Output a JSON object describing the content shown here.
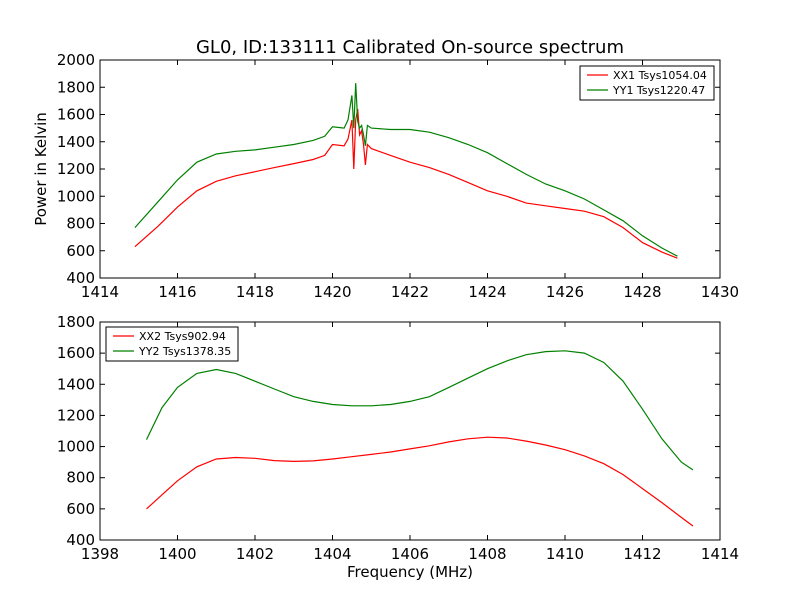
{
  "title": "GL0, ID:133111 Calibrated On-source spectrum",
  "xlabel": "Frequency (MHz)",
  "chart_data": [
    {
      "type": "line",
      "title": "GL0, ID:133111 Calibrated On-source spectrum",
      "xlabel": "",
      "ylabel": "Power in Kelvin",
      "xlim": [
        1414,
        1430
      ],
      "ylim": [
        400,
        2000
      ],
      "xticks": [
        1414,
        1416,
        1418,
        1420,
        1422,
        1424,
        1426,
        1428,
        1430
      ],
      "yticks": [
        400,
        600,
        800,
        1000,
        1200,
        1400,
        1600,
        1800,
        2000
      ],
      "grid": false,
      "legend_position": "upper right",
      "series": [
        {
          "name": "XX1 Tsys1054.04",
          "color": "#ff0000",
          "x": [
            1414.9,
            1415.5,
            1416.0,
            1416.5,
            1417.0,
            1417.5,
            1418.0,
            1418.5,
            1419.0,
            1419.5,
            1419.8,
            1420.0,
            1420.3,
            1420.4,
            1420.5,
            1420.55,
            1420.6,
            1420.65,
            1420.7,
            1420.75,
            1420.8,
            1420.85,
            1420.9,
            1421.0,
            1421.5,
            1422.0,
            1422.5,
            1423.0,
            1423.5,
            1424.0,
            1424.5,
            1425.0,
            1425.5,
            1426.0,
            1426.5,
            1427.0,
            1427.5,
            1428.0,
            1428.5,
            1428.9
          ],
          "y": [
            630,
            780,
            920,
            1040,
            1110,
            1150,
            1180,
            1210,
            1240,
            1270,
            1300,
            1380,
            1370,
            1420,
            1560,
            1200,
            1560,
            1640,
            1450,
            1480,
            1380,
            1230,
            1380,
            1350,
            1300,
            1250,
            1210,
            1160,
            1100,
            1040,
            1000,
            950,
            930,
            910,
            890,
            850,
            770,
            660,
            590,
            545
          ]
        },
        {
          "name": "YY1 Tsys1220.47",
          "color": "#008000",
          "x": [
            1414.9,
            1415.5,
            1416.0,
            1416.5,
            1417.0,
            1417.5,
            1418.0,
            1418.5,
            1419.0,
            1419.5,
            1419.8,
            1420.0,
            1420.3,
            1420.4,
            1420.5,
            1420.55,
            1420.6,
            1420.65,
            1420.7,
            1420.75,
            1420.8,
            1420.85,
            1420.9,
            1421.0,
            1421.5,
            1422.0,
            1422.5,
            1423.0,
            1423.5,
            1424.0,
            1424.5,
            1425.0,
            1425.5,
            1426.0,
            1426.5,
            1427.0,
            1427.5,
            1428.0,
            1428.5,
            1428.9
          ],
          "y": [
            770,
            960,
            1120,
            1250,
            1310,
            1330,
            1340,
            1360,
            1380,
            1410,
            1440,
            1510,
            1500,
            1560,
            1740,
            1500,
            1830,
            1550,
            1500,
            1520,
            1450,
            1370,
            1520,
            1500,
            1490,
            1490,
            1470,
            1430,
            1380,
            1320,
            1240,
            1160,
            1090,
            1040,
            980,
            900,
            820,
            710,
            620,
            560
          ]
        }
      ]
    },
    {
      "type": "line",
      "title": "",
      "xlabel": "Frequency (MHz)",
      "ylabel": "",
      "xlim": [
        1398,
        1414
      ],
      "ylim": [
        400,
        1800
      ],
      "xticks": [
        1398,
        1400,
        1402,
        1404,
        1406,
        1408,
        1410,
        1412,
        1414
      ],
      "yticks": [
        400,
        600,
        800,
        1000,
        1200,
        1400,
        1600,
        1800
      ],
      "grid": false,
      "legend_position": "upper left",
      "series": [
        {
          "name": "XX2 Tsys902.94",
          "color": "#ff0000",
          "x": [
            1399.2,
            1399.6,
            1400.0,
            1400.5,
            1401.0,
            1401.5,
            1402.0,
            1402.5,
            1403.0,
            1403.5,
            1404.0,
            1404.5,
            1405.0,
            1405.5,
            1406.0,
            1406.5,
            1407.0,
            1407.5,
            1408.0,
            1408.5,
            1409.0,
            1409.5,
            1410.0,
            1410.5,
            1411.0,
            1411.5,
            1412.0,
            1412.5,
            1413.0,
            1413.3
          ],
          "y": [
            600,
            690,
            780,
            870,
            920,
            930,
            925,
            910,
            905,
            908,
            920,
            935,
            950,
            965,
            985,
            1005,
            1030,
            1050,
            1060,
            1055,
            1035,
            1010,
            980,
            940,
            890,
            820,
            730,
            640,
            545,
            490
          ]
        },
        {
          "name": "YY2 Tsys1378.35",
          "color": "#008000",
          "x": [
            1399.2,
            1399.6,
            1400.0,
            1400.5,
            1401.0,
            1401.5,
            1402.0,
            1402.5,
            1403.0,
            1403.5,
            1404.0,
            1404.5,
            1405.0,
            1405.5,
            1406.0,
            1406.5,
            1407.0,
            1407.5,
            1408.0,
            1408.5,
            1409.0,
            1409.5,
            1410.0,
            1410.5,
            1411.0,
            1411.5,
            1412.0,
            1412.5,
            1413.0,
            1413.3
          ],
          "y": [
            1045,
            1250,
            1380,
            1470,
            1495,
            1470,
            1420,
            1370,
            1320,
            1290,
            1270,
            1262,
            1262,
            1270,
            1290,
            1320,
            1380,
            1440,
            1500,
            1550,
            1590,
            1610,
            1615,
            1600,
            1540,
            1420,
            1240,
            1050,
            900,
            850
          ]
        }
      ]
    }
  ]
}
